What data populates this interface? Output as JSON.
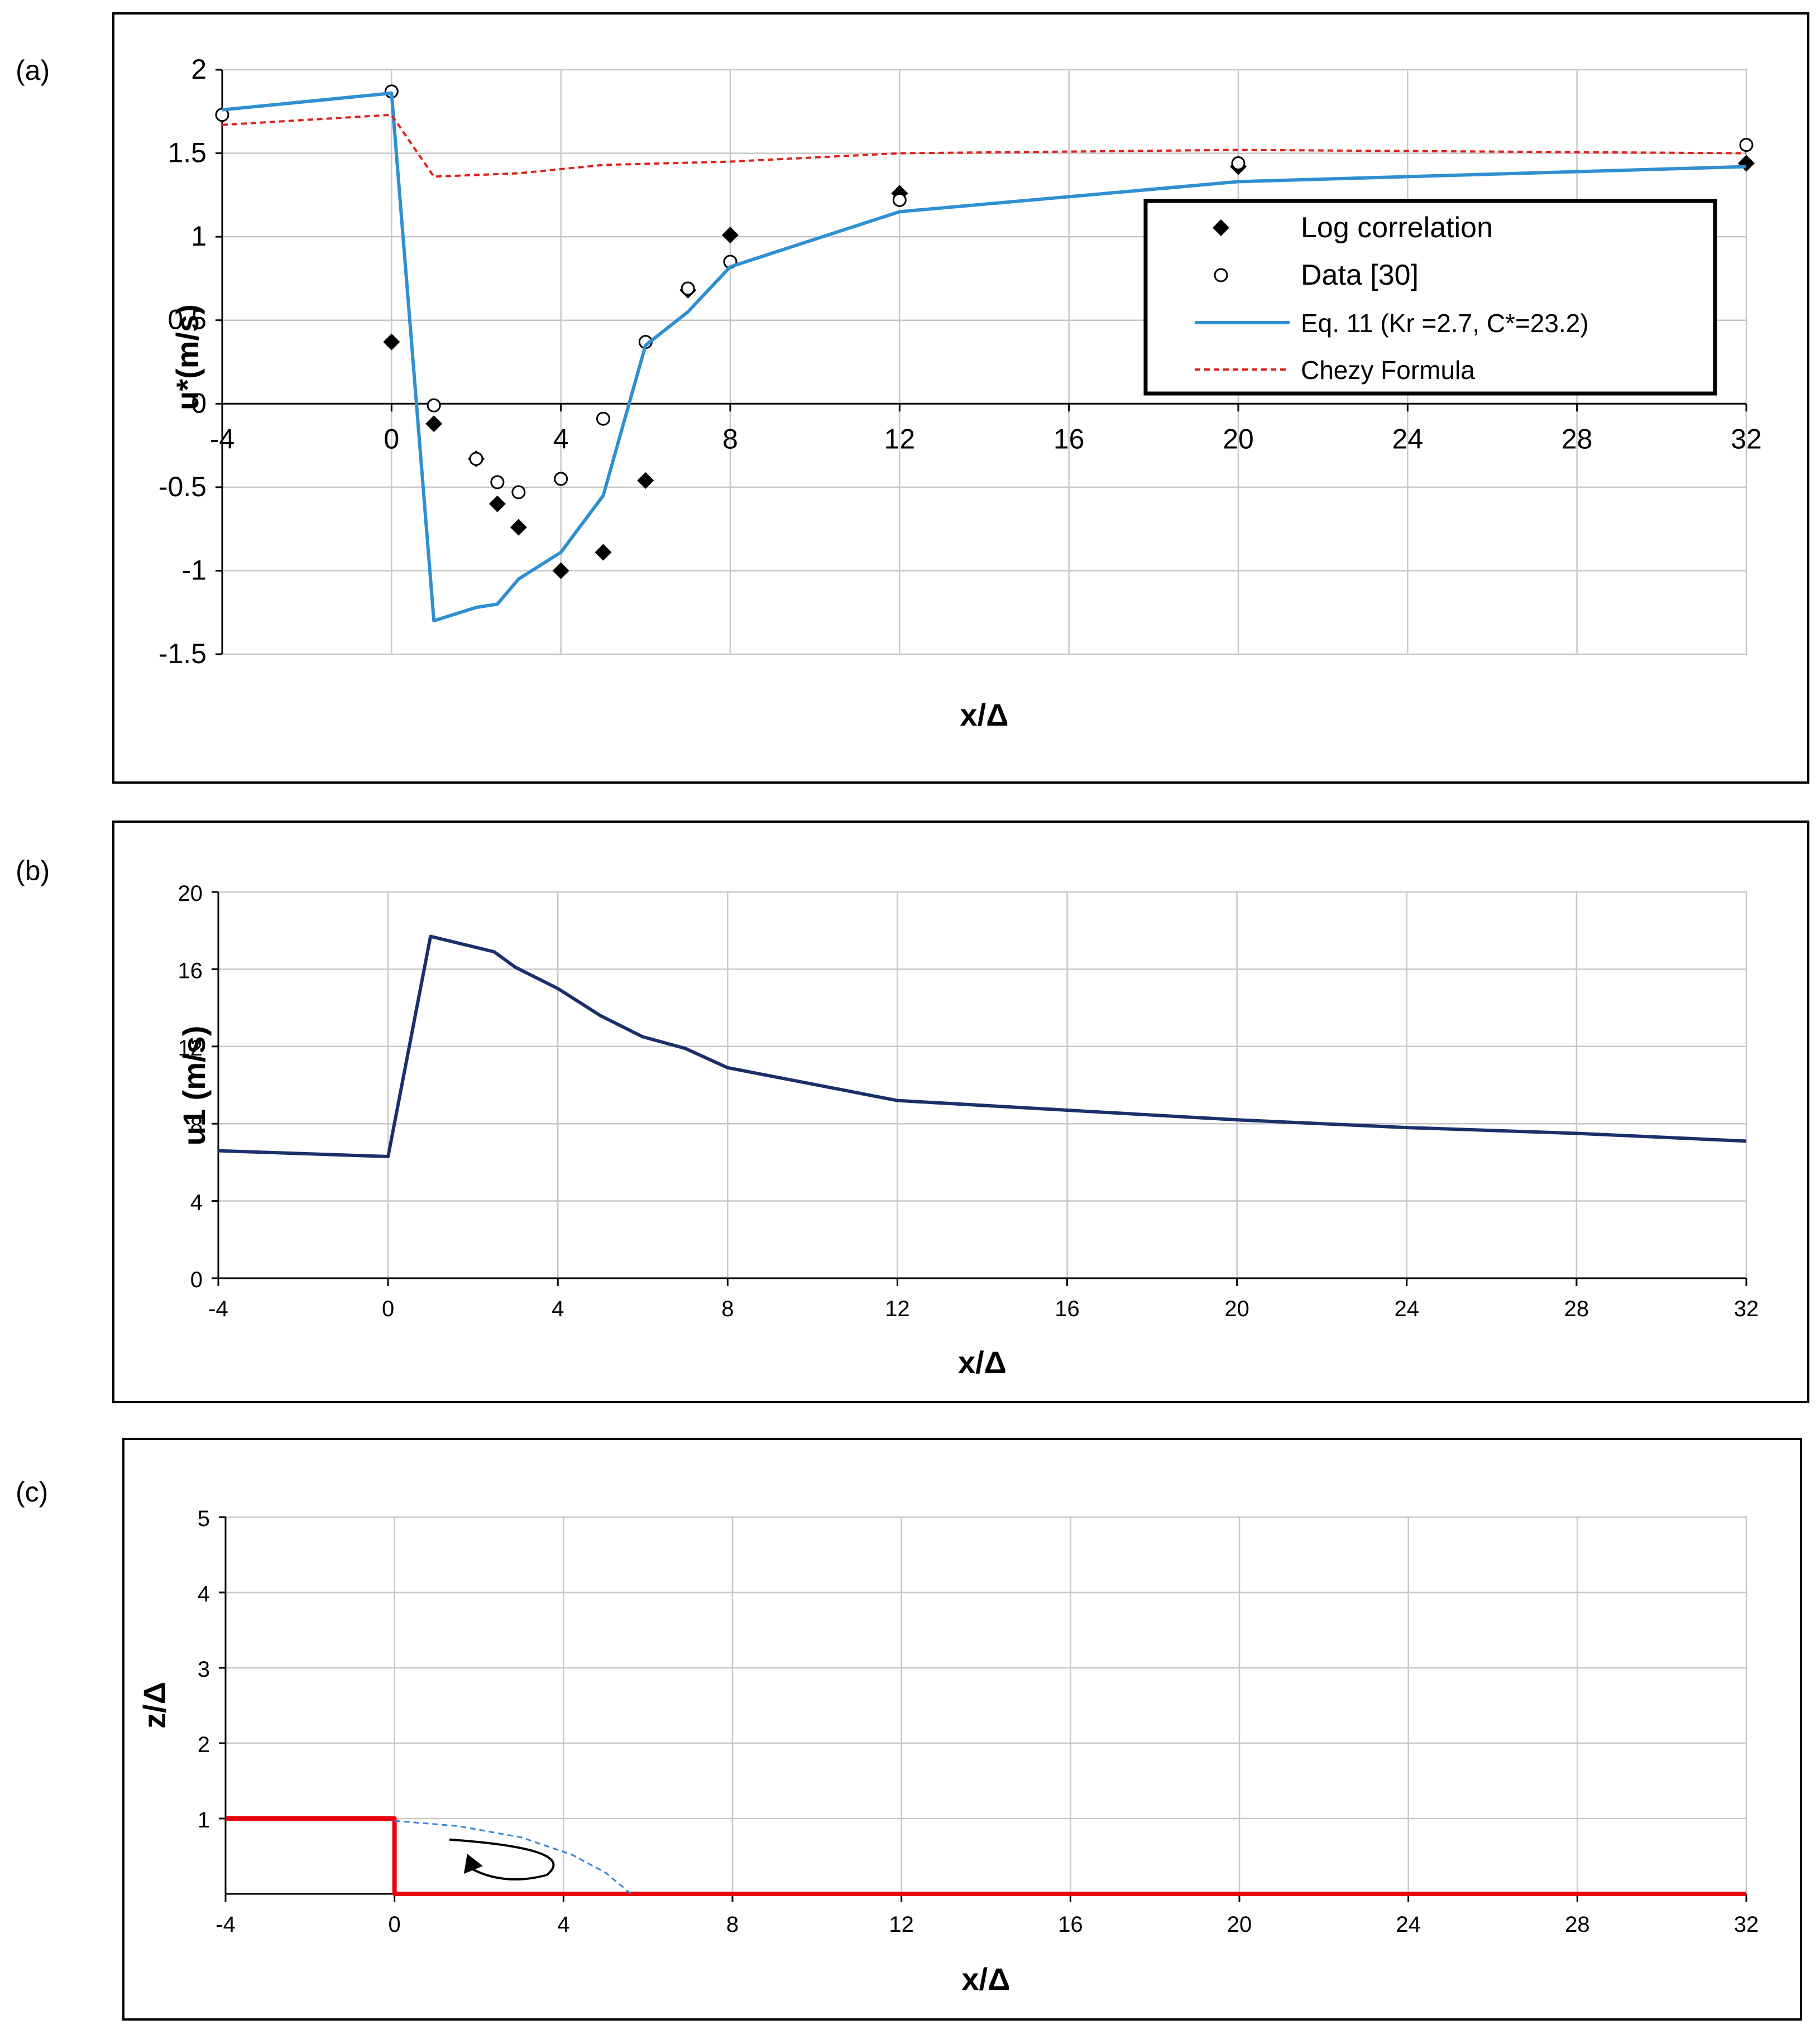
{
  "panels": {
    "a": {
      "label": "(a)"
    },
    "b": {
      "label": "(b)"
    },
    "c": {
      "label": "(c)"
    }
  },
  "chart_data": [
    {
      "id": "a",
      "type": "line",
      "title": "",
      "xlabel": "x/Δ",
      "ylabel": "u*(m/s)",
      "xlim": [
        -4,
        32
      ],
      "ylim": [
        -1.5,
        2
      ],
      "xticks": [
        "-4",
        "0",
        "4",
        "8",
        "12",
        "16",
        "20",
        "24",
        "28",
        "32"
      ],
      "yticks": [
        "-1.5",
        "-1",
        "-0.5",
        "0",
        "0.5",
        "1",
        "1.5",
        "2"
      ],
      "legend": [
        "Log correlation",
        "Data [30]",
        "Eq. 11 (Kr =2.7, C*=23.2)",
        "Chezy Formula"
      ],
      "series": [
        {
          "name": "Log correlation",
          "marker": "diamond",
          "color": "#000000",
          "x": [
            0,
            1,
            2,
            2.5,
            3,
            4,
            5,
            6,
            7,
            8,
            12,
            20,
            32
          ],
          "y": [
            0.37,
            -0.12,
            -0.33,
            -0.6,
            -0.74,
            -1.0,
            -0.89,
            -0.46,
            0.68,
            1.01,
            1.26,
            1.42,
            1.44
          ]
        },
        {
          "name": "Data [30]",
          "marker": "circle",
          "color": "#000000",
          "x": [
            -4,
            0,
            1,
            2,
            2.5,
            3,
            4,
            5,
            6,
            7,
            8,
            12,
            20,
            32
          ],
          "y": [
            1.73,
            1.87,
            -0.01,
            -0.33,
            -0.47,
            -0.53,
            -0.45,
            -0.09,
            0.37,
            0.69,
            0.85,
            1.22,
            1.44,
            1.55
          ]
        },
        {
          "name": "Eq. 11 (Kr =2.7, C*=23.2)",
          "line": "solid",
          "color": "#2f8fd0",
          "x": [
            -4,
            0,
            1,
            2,
            2.5,
            3,
            4,
            5,
            6,
            7,
            8,
            12,
            20,
            32
          ],
          "y": [
            1.76,
            1.86,
            -1.3,
            -1.22,
            -1.2,
            -1.05,
            -0.89,
            -0.55,
            0.35,
            0.55,
            0.82,
            1.15,
            1.33,
            1.42
          ]
        },
        {
          "name": "Chezy Formula",
          "line": "dashed",
          "color": "#e0201c",
          "x": [
            -4,
            0,
            1,
            3,
            5,
            8,
            12,
            20,
            32
          ],
          "y": [
            1.67,
            1.73,
            1.36,
            1.38,
            1.43,
            1.45,
            1.5,
            1.52,
            1.5
          ]
        }
      ]
    },
    {
      "id": "b",
      "type": "line",
      "title": "",
      "xlabel": "x/Δ",
      "ylabel": "u1 (m/s)",
      "xlim": [
        -4,
        32
      ],
      "ylim": [
        0,
        20
      ],
      "xticks": [
        "-4",
        "0",
        "4",
        "8",
        "12",
        "16",
        "20",
        "24",
        "28",
        "32"
      ],
      "yticks": [
        "0",
        "4",
        "8",
        "12",
        "16",
        "20"
      ],
      "series": [
        {
          "name": "u1",
          "line": "solid",
          "color": "#1b2f6b",
          "x": [
            -4,
            0,
            1,
            2.5,
            3,
            4,
            5,
            6,
            7,
            8,
            12,
            16,
            20,
            24,
            28,
            32
          ],
          "y": [
            6.6,
            6.3,
            17.7,
            16.9,
            16.1,
            15.0,
            13.6,
            12.5,
            11.9,
            10.9,
            9.2,
            8.7,
            8.2,
            7.8,
            7.5,
            7.1
          ]
        }
      ]
    },
    {
      "id": "c",
      "type": "line",
      "title": "",
      "xlabel": "x/Δ",
      "ylabel": "z/Δ",
      "xlim": [
        -4,
        32
      ],
      "ylim": [
        0,
        5
      ],
      "xticks": [
        "-4",
        "0",
        "4",
        "8",
        "12",
        "16",
        "20",
        "24",
        "28",
        "32"
      ],
      "yticks": [
        "1",
        "2",
        "3",
        "4",
        "5"
      ],
      "series": [
        {
          "name": "step profile",
          "line": "solid",
          "color": "#e8000b",
          "x": [
            -4,
            0,
            0,
            32
          ],
          "y": [
            1,
            1,
            0,
            0
          ]
        },
        {
          "name": "reattachment streamline",
          "line": "dashed",
          "color": "#3a86d4",
          "x": [
            0,
            1.5,
            3,
            4.2,
            5,
            5.6
          ],
          "y": [
            0.97,
            0.9,
            0.75,
            0.52,
            0.28,
            0
          ]
        }
      ]
    }
  ]
}
